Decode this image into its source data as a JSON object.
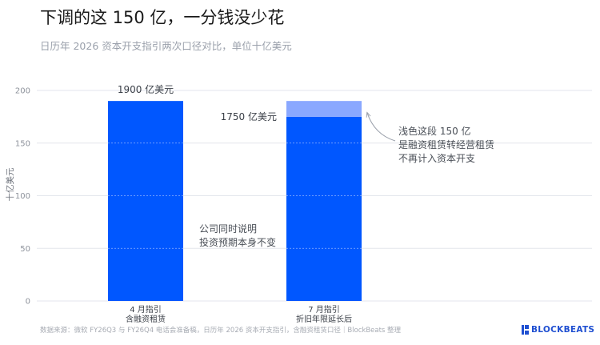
{
  "header": {
    "title": "下调的这 150 亿，一分钱没少花",
    "subtitle": "日历年 2026 资本开支指引两次口径对比，单位十亿美元"
  },
  "footer": {
    "source": "数据来源：微软 FY26Q3 与 FY26Q4 电话会准备稿，日历年 2026 资本开支指引，含融资租赁口径｜BlockBeats 整理",
    "logo_text": "BLOCKBEATS"
  },
  "colors": {
    "bar_primary": "#0057ff",
    "bar_light": "#8aa8ff",
    "grid": "#e3e6ec",
    "axis_text": "#8d929b",
    "annotation_text": "#4a4f57"
  },
  "chart_data": {
    "type": "bar",
    "ylabel": "十亿美元",
    "ylim": [
      0,
      200
    ],
    "yticks": [
      "0",
      "50",
      "100",
      "150",
      "200"
    ],
    "ytick_values": [
      0,
      50,
      100,
      150,
      200
    ],
    "grid": true,
    "categories": [
      [
        "4 月指引",
        "含融资租赁"
      ],
      [
        "7 月指引",
        "折旧年限延长后"
      ]
    ],
    "bars": [
      {
        "total": 190,
        "segments": [
          {
            "value": 190,
            "shade": "primary"
          }
        ]
      },
      {
        "total": 190,
        "segments": [
          {
            "value": 175,
            "shade": "primary"
          },
          {
            "value": 15,
            "shade": "light"
          }
        ]
      }
    ],
    "data_labels": [
      "1900 亿美元",
      "1750 亿美元"
    ],
    "annotations": {
      "middle_note": [
        "公司同时说明",
        "投资预期本身不变"
      ],
      "light_segment_note": [
        "浅色这段 150 亿",
        "是融资租赁转经营租赁",
        "不再计入资本开支"
      ]
    }
  }
}
